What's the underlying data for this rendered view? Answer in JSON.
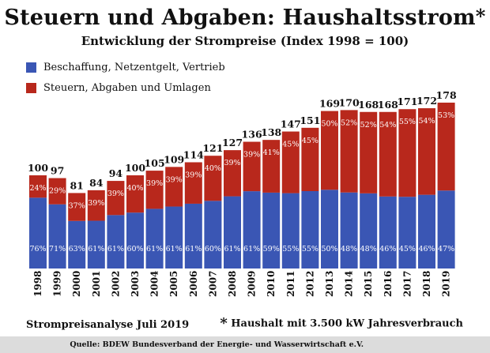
{
  "title": "Steuern und Abgaben: Haushaltsstrom",
  "title_star": "*",
  "subtitle": "Entwicklung der Strompreise (Index 1998 = 100)",
  "footer": {
    "left": "Strompreisanalyse Juli 2019",
    "right_star": "*",
    "right": "Haushalt mit 3.500 kW Jahresverbrauch"
  },
  "source": "Quelle: BDEW Bundesverband der Energie- und Wasserwirtschaft e.V.",
  "colors": {
    "blue": "#3a56b4",
    "red": "#b8281c"
  },
  "chart_data": {
    "type": "bar",
    "stacked": true,
    "categories": [
      "1998",
      "1999",
      "2000",
      "2001",
      "2002",
      "2003",
      "2004",
      "2005",
      "2006",
      "2007",
      "2008",
      "2009",
      "2010",
      "2011",
      "2012",
      "2013",
      "2014",
      "2015",
      "2016",
      "2017",
      "2018",
      "2019"
    ],
    "totals": [
      100,
      97,
      81,
      84,
      94,
      100,
      105,
      109,
      114,
      121,
      127,
      136,
      138,
      147,
      151,
      169,
      170,
      168,
      168,
      171,
      172,
      178
    ],
    "series": [
      {
        "name": "Beschaffung, Netzentgelt, Vertrieb",
        "color": "#3a56b4",
        "percent_labels": [
          "76%",
          "71%",
          "63%",
          "61%",
          "61%",
          "60%",
          "61%",
          "61%",
          "61%",
          "60%",
          "61%",
          "61%",
          "59%",
          "55%",
          "55%",
          "50%",
          "48%",
          "48%",
          "46%",
          "45%",
          "46%",
          "47%"
        ]
      },
      {
        "name": "Steuern, Abgaben und Umlagen",
        "color": "#b8281c",
        "percent_labels": [
          "24%",
          "29%",
          "37%",
          "39%",
          "39%",
          "40%",
          "39%",
          "39%",
          "39%",
          "40%",
          "39%",
          "39%",
          "41%",
          "45%",
          "45%",
          "50%",
          "52%",
          "52%",
          "54%",
          "55%",
          "54%",
          "53%"
        ]
      }
    ],
    "ylim": [
      0,
      190
    ],
    "grid": false,
    "legend_position": "top-left"
  }
}
